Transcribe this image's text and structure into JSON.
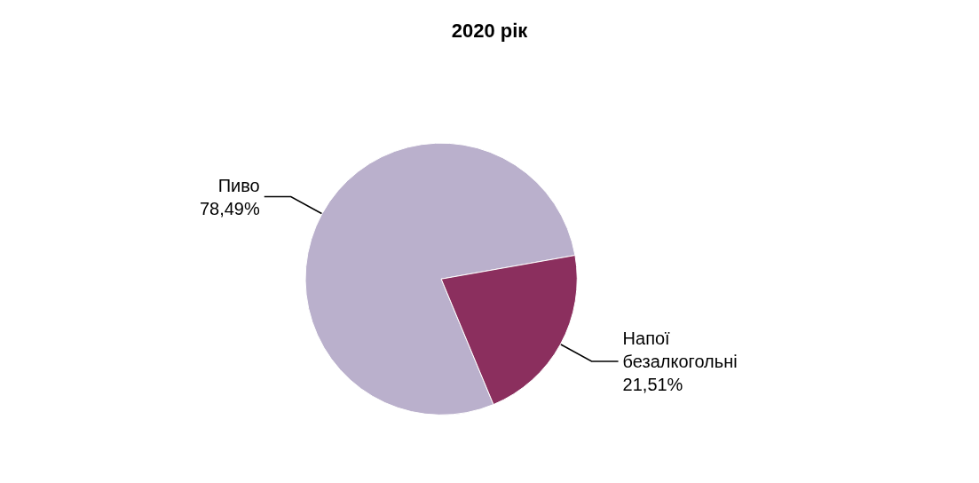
{
  "chart_data": {
    "type": "pie",
    "title": "2020 рік",
    "categories": [
      "Пиво",
      "Напої безалкогольні"
    ],
    "values": [
      78.49,
      21.51
    ],
    "colors": [
      "#bab0cc",
      "#8b2f5e"
    ],
    "value_labels": [
      "78,49%",
      "21,51%"
    ]
  }
}
